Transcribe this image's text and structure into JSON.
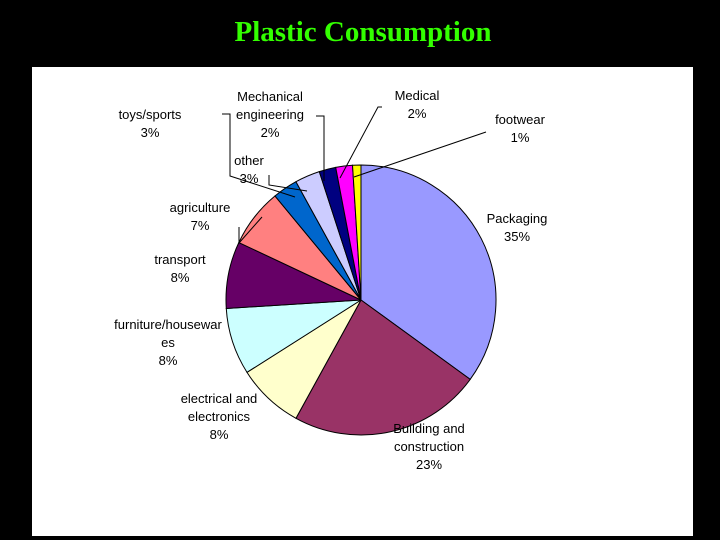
{
  "slide": {
    "title": "Plastic Consumption"
  },
  "chart_data": {
    "type": "pie",
    "title": "",
    "legend": "none",
    "slices": [
      {
        "label": "Packaging",
        "label_lines": [
          "Packaging"
        ],
        "value_text": "35%",
        "value": 35,
        "color": "#9999ff"
      },
      {
        "label": "Building and construction",
        "label_lines": [
          "Building and",
          "construction"
        ],
        "value_text": "23%",
        "value": 23,
        "color": "#993366"
      },
      {
        "label": "electrical and electronics",
        "label_lines": [
          "electrical and",
          "electronics"
        ],
        "value_text": "8%",
        "value": 8,
        "color": "#ffffcc"
      },
      {
        "label": "furniture/housewares",
        "label_lines": [
          "furniture/housewar",
          "es"
        ],
        "value_text": "8%",
        "value": 8,
        "color": "#ccffff"
      },
      {
        "label": "transport",
        "label_lines": [
          "transport"
        ],
        "value_text": "8%",
        "value": 8,
        "color": "#660066"
      },
      {
        "label": "agriculture",
        "label_lines": [
          "agriculture"
        ],
        "value_text": "7%",
        "value": 7,
        "color": "#ff8080"
      },
      {
        "label": "toys/sports",
        "label_lines": [
          "toys/sports"
        ],
        "value_text": "3%",
        "value": 3,
        "color": "#0066cc"
      },
      {
        "label": "other",
        "label_lines": [
          "other"
        ],
        "value_text": "3%",
        "value": 3,
        "color": "#ccccff"
      },
      {
        "label": "Mechanical engineering",
        "label_lines": [
          "Mechanical",
          "engineering"
        ],
        "value_text": "2%",
        "value": 2,
        "color": "#000080"
      },
      {
        "label": "Medical",
        "label_lines": [
          "Medical"
        ],
        "value_text": "2%",
        "value": 2,
        "color": "#ff00ff"
      },
      {
        "label": "footwear",
        "label_lines": [
          "footwear"
        ],
        "value_text": "1%",
        "value": 1,
        "color": "#ffff00"
      }
    ]
  }
}
